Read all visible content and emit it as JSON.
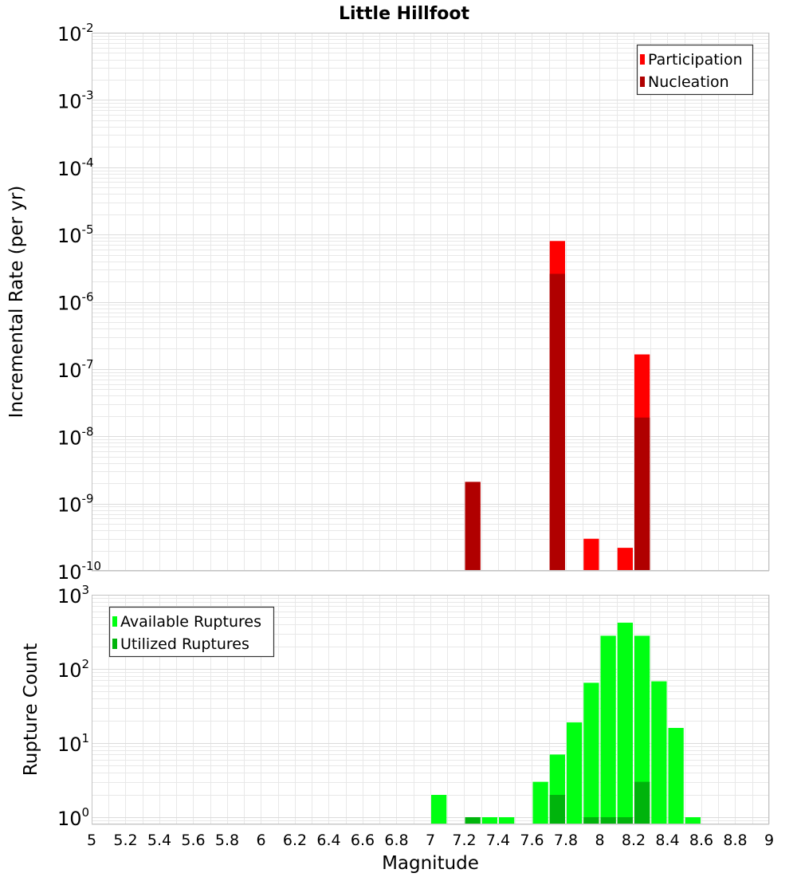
{
  "title": "Little Hillfoot",
  "xlabel": "Magnitude",
  "colors": {
    "participation": "#ff0000",
    "nucleation": "#b00000",
    "available": "#00ff12",
    "utilized": "#00b40c",
    "grid": "#e8e8e8",
    "frame": "#c4c4c4"
  },
  "chart_data": [
    {
      "type": "bar",
      "name": "rate-panel",
      "ylabel": "Incremental Rate (per yr)",
      "yscale": "log",
      "ylim": [
        1e-10,
        0.01
      ],
      "xlim": [
        5,
        9
      ],
      "xticks": [
        "5",
        "5.2",
        "5.4",
        "5.6",
        "5.8",
        "6",
        "6.2",
        "6.4",
        "6.6",
        "6.8",
        "7",
        "7.2",
        "7.4",
        "7.6",
        "7.8",
        "8",
        "8.2",
        "8.4",
        "8.6",
        "8.8",
        "9"
      ],
      "yticks": [
        {
          "base": "10",
          "exp": "-10"
        },
        {
          "base": "10",
          "exp": "-9"
        },
        {
          "base": "10",
          "exp": "-8"
        },
        {
          "base": "10",
          "exp": "-7"
        },
        {
          "base": "10",
          "exp": "-6"
        },
        {
          "base": "10",
          "exp": "-5"
        },
        {
          "base": "10",
          "exp": "-4"
        },
        {
          "base": "10",
          "exp": "-3"
        },
        {
          "base": "10",
          "exp": "-2"
        }
      ],
      "legend_position": "top-right",
      "series": [
        {
          "name": "Participation",
          "color": "#ff0000",
          "x": [
            7.25,
            7.75,
            7.95,
            8.15,
            8.25
          ],
          "values": [
            2.1e-09,
            8e-06,
            3e-10,
            2.2e-10,
            1.65e-07
          ]
        },
        {
          "name": "Nucleation",
          "color": "#b00000",
          "x": [
            7.25,
            7.75,
            8.25
          ],
          "values": [
            2.1e-09,
            2.6e-06,
            1.9e-08
          ]
        }
      ]
    },
    {
      "type": "bar",
      "name": "count-panel",
      "ylabel": "Rupture Count",
      "yscale": "log",
      "ylim": [
        0.8,
        1000
      ],
      "xlim": [
        5,
        9
      ],
      "yticks": [
        {
          "base": "10",
          "exp": "0",
          "value": 1
        },
        {
          "base": "10",
          "exp": "1",
          "value": 10
        },
        {
          "base": "10",
          "exp": "2",
          "value": 100
        },
        {
          "base": "10",
          "exp": "3",
          "value": 1000
        }
      ],
      "legend_position": "top-left",
      "series": [
        {
          "name": "Available Ruptures",
          "color": "#00ff12",
          "x": [
            7.05,
            7.25,
            7.35,
            7.45,
            7.65,
            7.75,
            7.85,
            7.95,
            8.05,
            8.15,
            8.25,
            8.35,
            8.45,
            8.55
          ],
          "values": [
            2,
            1,
            1,
            1,
            3,
            7,
            19,
            65,
            280,
            420,
            280,
            68,
            16,
            1
          ]
        },
        {
          "name": "Utilized Ruptures",
          "color": "#00b40c",
          "x": [
            7.25,
            7.75,
            7.95,
            8.05,
            8.15,
            8.25
          ],
          "values": [
            1,
            2,
            1,
            1,
            1,
            3
          ]
        }
      ]
    }
  ]
}
